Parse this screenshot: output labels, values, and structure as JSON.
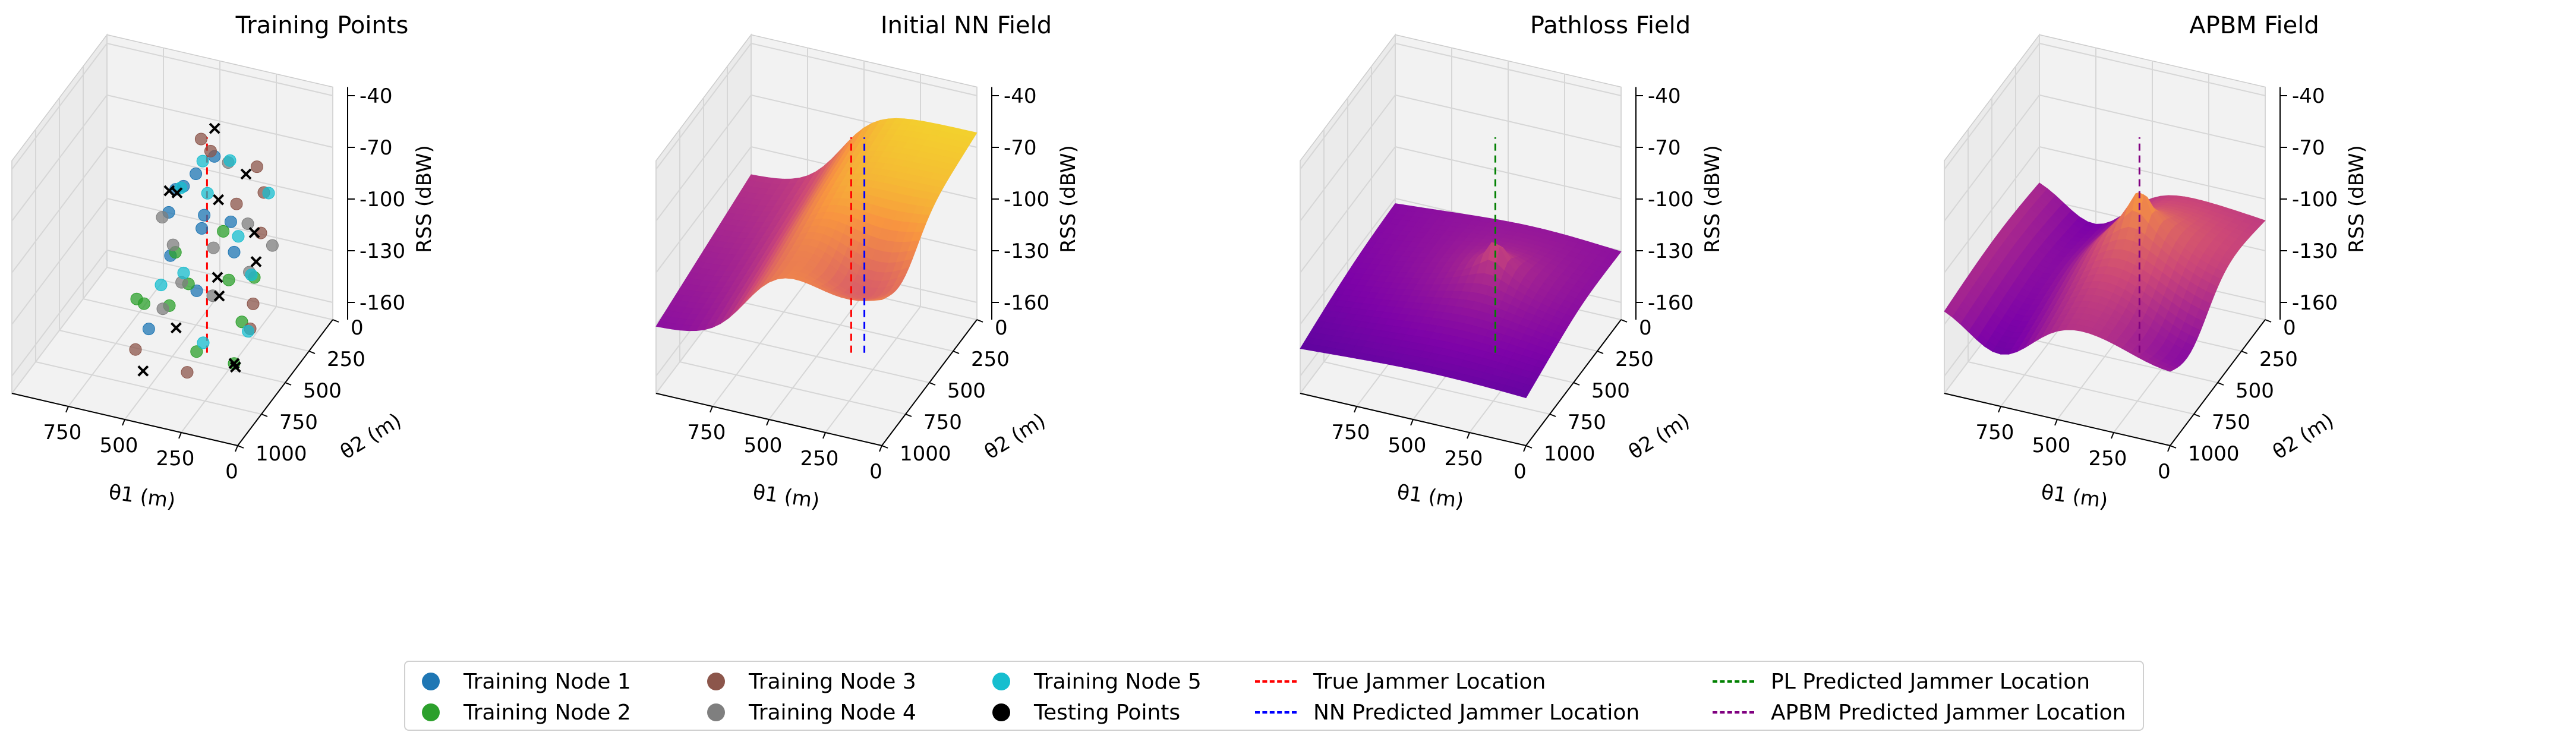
{
  "chart_data": [
    {
      "type": "scatter",
      "title": "Training Points",
      "xlabel": "θ1 (m)",
      "ylabel": "θ2 (m)",
      "zlabel": "RSS (dBW)",
      "x_ticks": [
        "750",
        "500",
        "250",
        "0"
      ],
      "y_ticks": [
        "0",
        "250",
        "500",
        "750",
        "1000"
      ],
      "z_ticks": [
        "-40",
        "-70",
        "-100",
        "-130",
        "-160"
      ],
      "zlim": [
        -170,
        -35
      ],
      "series": [
        {
          "name": "Training Node 1",
          "color": "#1f77b4",
          "points": [
            [
              620,
              180,
              -100
            ],
            [
              560,
              240,
              -92
            ],
            [
              480,
              300,
              -78
            ],
            [
              420,
              380,
              -102
            ],
            [
              380,
              450,
              -88
            ],
            [
              500,
              520,
              -110
            ],
            [
              300,
              360,
              -96
            ],
            [
              260,
              420,
              -108
            ],
            [
              350,
              600,
              -120
            ],
            [
              520,
              700,
              -140
            ],
            [
              600,
              300,
              -104
            ],
            [
              440,
              200,
              -74
            ]
          ]
        },
        {
          "name": "Training Node 2",
          "color": "#2ca02c",
          "points": [
            [
              700,
              400,
              -150
            ],
            [
              600,
              560,
              -138
            ],
            [
              450,
              650,
              -128
            ],
            [
              300,
              720,
              -145
            ],
            [
              250,
              500,
              -118
            ],
            [
              200,
              350,
              -126
            ],
            [
              380,
              250,
              -112
            ],
            [
              520,
              420,
              -116
            ],
            [
              150,
              600,
              -132
            ],
            [
              100,
              800,
              -140
            ],
            [
              420,
              520,
              -124
            ]
          ]
        },
        {
          "name": "Training Node 3",
          "color": "#8c564b",
          "points": [
            [
              520,
              150,
              -70
            ],
            [
              440,
              240,
              -68
            ],
            [
              300,
              300,
              -90
            ],
            [
              150,
              400,
              -95
            ],
            [
              100,
              600,
              -120
            ],
            [
              50,
              750,
              -122
            ],
            [
              350,
              700,
              -160
            ],
            [
              600,
              650,
              -158
            ],
            [
              200,
              250,
              -84
            ],
            [
              260,
              180,
              -76
            ]
          ]
        },
        {
          "name": "Training Node 4",
          "color": "#7f7f7f",
          "points": [
            [
              650,
              250,
              -112
            ],
            [
              560,
              350,
              -118
            ],
            [
              480,
              450,
              -130
            ],
            [
              360,
              400,
              -110
            ],
            [
              250,
              300,
              -100
            ],
            [
              180,
              450,
              -115
            ],
            [
              400,
              150,
              -80
            ],
            [
              300,
              550,
              -125
            ],
            [
              500,
              600,
              -135
            ],
            [
              120,
              350,
              -105
            ]
          ]
        },
        {
          "name": "Training Node 5",
          "color": "#17becf",
          "points": [
            [
              580,
              220,
              -95
            ],
            [
              500,
              180,
              -80
            ],
            [
              420,
              320,
              -86
            ],
            [
              350,
              250,
              -70
            ],
            [
              250,
              400,
              -100
            ],
            [
              150,
              500,
              -112
            ],
            [
              450,
              500,
              -120
            ],
            [
              300,
              650,
              -145
            ],
            [
              550,
              500,
              -130
            ],
            [
              200,
              200,
              -88
            ],
            [
              80,
              700,
              -128
            ]
          ]
        },
        {
          "name": "Testing Points",
          "color": "#000000",
          "marker": "x",
          "points": [
            [
              640,
              200,
              -100
            ],
            [
              580,
              260,
              -95
            ],
            [
              460,
              150,
              -62
            ],
            [
              380,
              300,
              -90
            ],
            [
              300,
              200,
              -80
            ],
            [
              200,
              350,
              -100
            ],
            [
              150,
              450,
              -108
            ],
            [
              100,
              800,
              -140
            ],
            [
              60,
              880,
              -135
            ],
            [
              420,
              650,
              -140
            ],
            [
              520,
              760,
              -160
            ],
            [
              300,
              500,
              -118
            ],
            [
              250,
              600,
              -120
            ]
          ]
        }
      ],
      "lines": [
        {
          "name": "True Jammer Location",
          "color": "#ff0000",
          "x": 380,
          "y": 420
        }
      ]
    },
    {
      "type": "surface",
      "title": "Initial NN Field",
      "xlabel": "θ1 (m)",
      "ylabel": "θ2 (m)",
      "zlabel": "RSS (dBW)",
      "x_ticks": [
        "750",
        "500",
        "250",
        "0"
      ],
      "y_ticks": [
        "0",
        "250",
        "500",
        "750",
        "1000"
      ],
      "z_ticks": [
        "-40",
        "-70",
        "-100",
        "-130",
        "-160"
      ],
      "zlim": [
        -170,
        -35
      ],
      "surface": "nn",
      "lines": [
        {
          "name": "True Jammer Location",
          "color": "#ff0000",
          "x": 380,
          "y": 420
        },
        {
          "name": "NN Predicted Jammer Location",
          "color": "#0000ff",
          "x": 330,
          "y": 400
        }
      ]
    },
    {
      "type": "surface",
      "title": "Pathloss Field",
      "xlabel": "θ1 (m)",
      "ylabel": "θ2 (m)",
      "zlabel": "RSS (dBW)",
      "x_ticks": [
        "750",
        "500",
        "250",
        "0"
      ],
      "y_ticks": [
        "0",
        "250",
        "500",
        "750",
        "1000"
      ],
      "z_ticks": [
        "-40",
        "-70",
        "-100",
        "-130",
        "-160"
      ],
      "zlim": [
        -170,
        -35
      ],
      "surface": "pathloss",
      "lines": [
        {
          "name": "PL Predicted Jammer Location",
          "color": "#008000",
          "x": 380,
          "y": 420
        }
      ]
    },
    {
      "type": "surface",
      "title": "APBM Field",
      "xlabel": "θ1 (m)",
      "ylabel": "θ2 (m)",
      "zlabel": "RSS (dBW)",
      "x_ticks": [
        "750",
        "500",
        "250",
        "0"
      ],
      "y_ticks": [
        "0",
        "250",
        "500",
        "750",
        "1000"
      ],
      "z_ticks": [
        "-40",
        "-70",
        "-100",
        "-130",
        "-160"
      ],
      "zlim": [
        -170,
        -35
      ],
      "surface": "apbm",
      "lines": [
        {
          "name": "APBM Predicted Jammer Location",
          "color": "#800080",
          "x": 380,
          "y": 420
        }
      ]
    }
  ],
  "legend": {
    "placement": "bottom-center",
    "items": [
      {
        "label": "Training Node 1",
        "kind": "dot",
        "color": "#1f77b4"
      },
      {
        "label": "Training Node 2",
        "kind": "dot",
        "color": "#2ca02c"
      },
      {
        "label": "Training Node 3",
        "kind": "dot",
        "color": "#8c564b"
      },
      {
        "label": "Training Node 4",
        "kind": "dot",
        "color": "#7f7f7f"
      },
      {
        "label": "Training Node 5",
        "kind": "dot",
        "color": "#17becf"
      },
      {
        "label": "Testing Points",
        "kind": "dot",
        "color": "#000000"
      },
      {
        "label": "True Jammer Location",
        "kind": "line",
        "color": "#ff0000"
      },
      {
        "label": "NN Predicted Jammer Location",
        "kind": "line",
        "color": "#0000ff"
      },
      {
        "label": "PL Predicted Jammer Location",
        "kind": "line",
        "color": "#008000"
      },
      {
        "label": "APBM Predicted Jammer Location",
        "kind": "line",
        "color": "#800080"
      }
    ]
  }
}
